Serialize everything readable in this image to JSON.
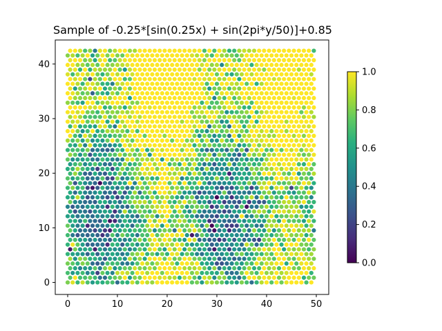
{
  "chart_data": {
    "type": "scatter",
    "title": "Sample of -0.25*[sin(0.25x) + sin(2pi*y/50)]+0.85",
    "xlabel": "",
    "ylabel": "",
    "xlim": [
      -2.5,
      52.5
    ],
    "ylim": [
      -2.2,
      44.4
    ],
    "xticks": [
      0,
      10,
      20,
      30,
      40,
      50
    ],
    "yticks": [
      0,
      10,
      20,
      30,
      40
    ],
    "grid": false,
    "grid_points": {
      "x_range": [
        0,
        49.5
      ],
      "x_step": 1,
      "odd_row_x_offset": 0.5,
      "y_range": [
        0,
        42.4
      ],
      "y_step": 0.866,
      "rows": 50,
      "columns": 50
    },
    "values_summary": "noisy sample of -0.25*[sin(0.25x)+sin(2*pi*y/50)]+0.85 clipped to [0, 1]",
    "colormap": "viridis",
    "colorbar": {
      "range": [
        0,
        1
      ],
      "ticks": [
        "0.0",
        "0.2",
        "0.4",
        "0.6",
        "0.8",
        "1.0"
      ]
    }
  }
}
